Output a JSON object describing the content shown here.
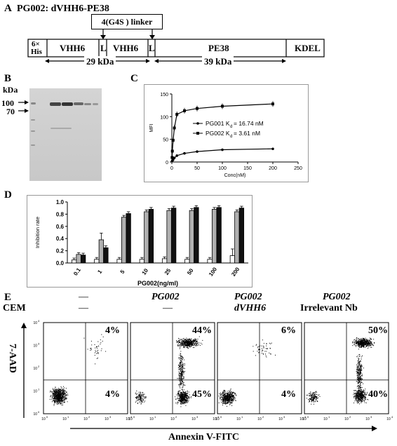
{
  "panelA": {
    "label": "A",
    "title": "PG002: dVHH6-PE38",
    "linker": "4(G4S ) linker",
    "segments": [
      "6×\nHis",
      "VHH6",
      "L",
      "VHH6",
      "L",
      "PE38",
      "KDEL"
    ],
    "his_top": "6×",
    "his_bottom": "His",
    "kda_left": "29 kDa",
    "kda_right": "39 kDa"
  },
  "panelB": {
    "label": "B",
    "unit": "kDa",
    "marker_100": "100",
    "marker_70": "70"
  },
  "panelC": {
    "label": "C",
    "chart_data": {
      "type": "line",
      "xlabel": "Conc(nM)",
      "ylabel": "MFI",
      "xlim": [
        0,
        250
      ],
      "ylim": [
        0,
        150
      ],
      "xticks": [
        0,
        50,
        100,
        150,
        200,
        250
      ],
      "yticks": [
        0,
        50,
        100,
        150
      ],
      "series": [
        {
          "name": "PG001 Kd= 16.74 nM",
          "marker": "circle",
          "x": [
            0.5,
            1,
            2.5,
            5,
            10,
            25,
            50,
            100,
            200
          ],
          "y": [
            2,
            3,
            5,
            9,
            14,
            19,
            23,
            27,
            29
          ]
        },
        {
          "name": "PG002 Kd= 3.61 nM",
          "marker": "square",
          "x": [
            0.5,
            1,
            2.5,
            5,
            10,
            25,
            50,
            100,
            200
          ],
          "y": [
            10,
            24,
            48,
            75,
            105,
            113,
            118,
            123,
            128
          ]
        }
      ],
      "legend": [
        "PG001 K",
        "d",
        "= 16.74 nM",
        "PG002 K",
        "d",
        "= 3.61 nM"
      ]
    }
  },
  "panelD": {
    "label": "D",
    "chart_data": {
      "type": "bar",
      "xlabel": "PG002(ng/ml)",
      "ylabel": "Inhibition rate",
      "ylim": [
        0,
        1.0
      ],
      "yticks": [
        "0.0",
        "0.2",
        "0.4",
        "0.6",
        "0.8",
        "1.0"
      ],
      "categories": [
        "0.1",
        "1",
        "5",
        "10",
        "25",
        "50",
        "100",
        "200"
      ],
      "series": [
        {
          "name": "",
          "color": "#ffffff",
          "values": [
            0.05,
            0.06,
            0.06,
            0.06,
            0.07,
            0.06,
            0.06,
            0.12
          ]
        },
        {
          "name": "",
          "color": "#b0b0b0",
          "values": [
            0.14,
            0.38,
            0.75,
            0.84,
            0.86,
            0.86,
            0.88,
            0.84
          ]
        },
        {
          "name": "",
          "color": "#111111",
          "values": [
            0.13,
            0.25,
            0.81,
            0.88,
            0.9,
            0.91,
            0.91,
            0.9
          ]
        }
      ]
    }
  },
  "panelE": {
    "label": "E",
    "row1_label": "CEM",
    "headers": [
      {
        "line1": "—",
        "line2": "—"
      },
      {
        "line1": "PG002",
        "line2": "—"
      },
      {
        "line1": "PG002",
        "line2": "dVHH6"
      },
      {
        "line1": "PG002",
        "line2": "Irrelevant Nb"
      }
    ],
    "quadrants": [
      {
        "upper_right": "4%",
        "lower_right": "4%"
      },
      {
        "upper_right": "44%",
        "lower_right": "45%"
      },
      {
        "upper_right": "6%",
        "lower_right": "4%"
      },
      {
        "upper_right": "50%",
        "lower_right": "40%"
      }
    ],
    "ylabel": "7-AAD",
    "xlabel": "Annexin V-FITC",
    "axis_ticks": [
      "10",
      "10",
      "10",
      "10",
      "10"
    ],
    "tick_exponents": [
      "0",
      "1",
      "2",
      "3",
      "4"
    ]
  }
}
